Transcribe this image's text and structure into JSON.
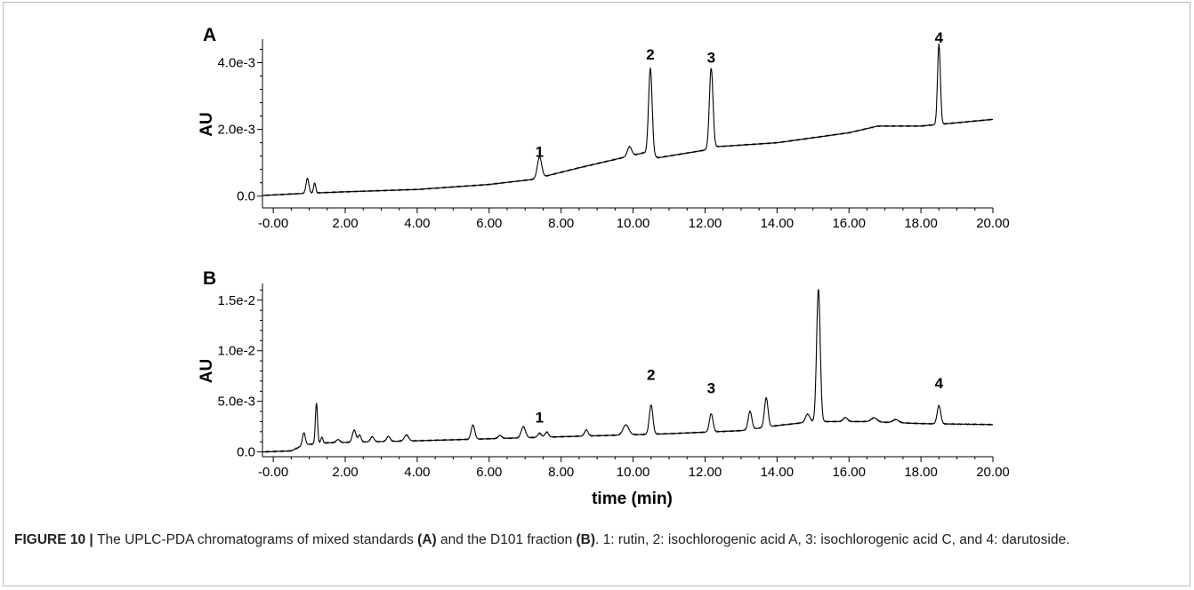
{
  "chart_data": [
    {
      "type": "line",
      "panel_label": "A",
      "ylabel": "AU",
      "xlabel": "",
      "xlim": [
        -0.3,
        20.0
      ],
      "ylim": [
        -0.0003,
        0.0046
      ],
      "x_ticks": [
        -0.0,
        2.0,
        4.0,
        6.0,
        8.0,
        10.0,
        12.0,
        14.0,
        16.0,
        18.0,
        20.0
      ],
      "x_tick_labels": [
        "-0.00",
        "2.00",
        "4.00",
        "6.00",
        "8.00",
        "10.00",
        "12.00",
        "14.00",
        "16.00",
        "18.00",
        "20.00"
      ],
      "y_ticks": [
        0.0,
        0.002,
        0.004
      ],
      "y_tick_labels": [
        "0.0",
        "2.0e-3",
        "4.0e-3"
      ],
      "baseline": [
        {
          "x": -0.3,
          "y": 2e-05
        },
        {
          "x": 0.8,
          "y": 8e-05
        },
        {
          "x": 2.0,
          "y": 0.00013
        },
        {
          "x": 4.0,
          "y": 0.0002
        },
        {
          "x": 6.0,
          "y": 0.00035
        },
        {
          "x": 7.2,
          "y": 0.0005
        },
        {
          "x": 8.5,
          "y": 0.00085
        },
        {
          "x": 10.3,
          "y": 0.0013
        },
        {
          "x": 10.7,
          "y": 0.00115
        },
        {
          "x": 12.0,
          "y": 0.00138
        },
        {
          "x": 12.3,
          "y": 0.00148
        },
        {
          "x": 14.0,
          "y": 0.0016
        },
        {
          "x": 16.0,
          "y": 0.0019
        },
        {
          "x": 16.8,
          "y": 0.0021
        },
        {
          "x": 18.0,
          "y": 0.0021
        },
        {
          "x": 20.0,
          "y": 0.0023
        }
      ],
      "peaks": [
        {
          "rt": 0.95,
          "height": 0.00045,
          "width": 0.04
        },
        {
          "rt": 1.15,
          "height": 0.0003,
          "width": 0.03
        },
        {
          "rt": 7.4,
          "height": 0.00062,
          "width": 0.06
        },
        {
          "rt": 9.9,
          "height": 0.00028,
          "width": 0.06
        },
        {
          "rt": 10.48,
          "height": 0.0026,
          "width": 0.05
        },
        {
          "rt": 12.17,
          "height": 0.0024,
          "width": 0.05
        },
        {
          "rt": 18.5,
          "height": 0.0024,
          "width": 0.04
        }
      ],
      "peak_labels": [
        {
          "text": "1",
          "x": 7.4,
          "y": 0.00118
        },
        {
          "text": "2",
          "x": 10.48,
          "y": 0.0041
        },
        {
          "text": "3",
          "x": 12.17,
          "y": 0.004
        },
        {
          "text": "4",
          "x": 18.5,
          "y": 0.0046
        }
      ]
    },
    {
      "type": "line",
      "panel_label": "B",
      "ylabel": "AU",
      "xlabel": "time (min)",
      "xlim": [
        -0.3,
        20.0
      ],
      "ylim": [
        -0.0003,
        0.0163
      ],
      "x_ticks": [
        -0.0,
        2.0,
        4.0,
        6.0,
        8.0,
        10.0,
        12.0,
        14.0,
        16.0,
        18.0,
        20.0
      ],
      "x_tick_labels": [
        "-0.00",
        "2.00",
        "4.00",
        "6.00",
        "8.00",
        "10.00",
        "12.00",
        "14.00",
        "16.00",
        "18.00",
        "20.00"
      ],
      "y_ticks": [
        0.0,
        0.005,
        0.01,
        0.015
      ],
      "y_tick_labels": [
        "0.0",
        "5.0e-3",
        "1.0e-2",
        "1.5e-2"
      ],
      "baseline": [
        {
          "x": -0.3,
          "y": 0.0
        },
        {
          "x": 0.5,
          "y": 0.0001
        },
        {
          "x": 0.85,
          "y": 0.0007
        },
        {
          "x": 1.5,
          "y": 0.0009
        },
        {
          "x": 4.0,
          "y": 0.0011
        },
        {
          "x": 7.0,
          "y": 0.0014
        },
        {
          "x": 9.0,
          "y": 0.0016
        },
        {
          "x": 11.0,
          "y": 0.0018
        },
        {
          "x": 13.0,
          "y": 0.0021
        },
        {
          "x": 14.0,
          "y": 0.0026
        },
        {
          "x": 15.0,
          "y": 0.003
        },
        {
          "x": 16.5,
          "y": 0.003
        },
        {
          "x": 18.0,
          "y": 0.0028
        },
        {
          "x": 20.0,
          "y": 0.0027
        }
      ],
      "peaks": [
        {
          "rt": 0.85,
          "height": 0.0012,
          "width": 0.04
        },
        {
          "rt": 1.2,
          "height": 0.004,
          "width": 0.03
        },
        {
          "rt": 1.35,
          "height": 0.0006,
          "width": 0.03
        },
        {
          "rt": 1.8,
          "height": 0.0003,
          "width": 0.05
        },
        {
          "rt": 2.25,
          "height": 0.0012,
          "width": 0.05
        },
        {
          "rt": 2.4,
          "height": 0.0007,
          "width": 0.04
        },
        {
          "rt": 2.75,
          "height": 0.0005,
          "width": 0.05
        },
        {
          "rt": 3.2,
          "height": 0.0005,
          "width": 0.05
        },
        {
          "rt": 3.7,
          "height": 0.0006,
          "width": 0.06
        },
        {
          "rt": 5.55,
          "height": 0.0014,
          "width": 0.05
        },
        {
          "rt": 6.3,
          "height": 0.0003,
          "width": 0.05
        },
        {
          "rt": 6.95,
          "height": 0.0011,
          "width": 0.06
        },
        {
          "rt": 7.4,
          "height": 0.0004,
          "width": 0.05
        },
        {
          "rt": 7.6,
          "height": 0.0005,
          "width": 0.05
        },
        {
          "rt": 8.7,
          "height": 0.0006,
          "width": 0.05
        },
        {
          "rt": 9.8,
          "height": 0.001,
          "width": 0.08
        },
        {
          "rt": 10.5,
          "height": 0.0029,
          "width": 0.05
        },
        {
          "rt": 12.17,
          "height": 0.0018,
          "width": 0.05
        },
        {
          "rt": 13.25,
          "height": 0.0018,
          "width": 0.05
        },
        {
          "rt": 13.7,
          "height": 0.0029,
          "width": 0.05
        },
        {
          "rt": 14.85,
          "height": 0.0008,
          "width": 0.06
        },
        {
          "rt": 15.15,
          "height": 0.0131,
          "width": 0.05
        },
        {
          "rt": 15.9,
          "height": 0.0004,
          "width": 0.06
        },
        {
          "rt": 16.7,
          "height": 0.0004,
          "width": 0.08
        },
        {
          "rt": 17.3,
          "height": 0.0003,
          "width": 0.08
        },
        {
          "rt": 18.5,
          "height": 0.0018,
          "width": 0.05
        }
      ],
      "peak_labels": [
        {
          "text": "1",
          "x": 7.4,
          "y": 0.0029
        },
        {
          "text": "2",
          "x": 10.5,
          "y": 0.0071
        },
        {
          "text": "3",
          "x": 12.17,
          "y": 0.0058
        },
        {
          "text": "4",
          "x": 18.5,
          "y": 0.0063
        }
      ]
    }
  ],
  "caption": {
    "label": "FIGURE 10",
    "separator": " | ",
    "part1": "The UPLC-PDA chromatograms of mixed standards ",
    "ref_a": "(A)",
    "part2": " and the D101 fraction ",
    "ref_b": "(B)",
    "part3": ". 1: rutin, 2: isochlorogenic acid A, 3: isochlorogenic acid C, and 4: darutoside."
  },
  "colors": {
    "trace": "#000000",
    "axis": "#000000",
    "frame": "#b9b9b9",
    "caption_text": "#222222"
  }
}
